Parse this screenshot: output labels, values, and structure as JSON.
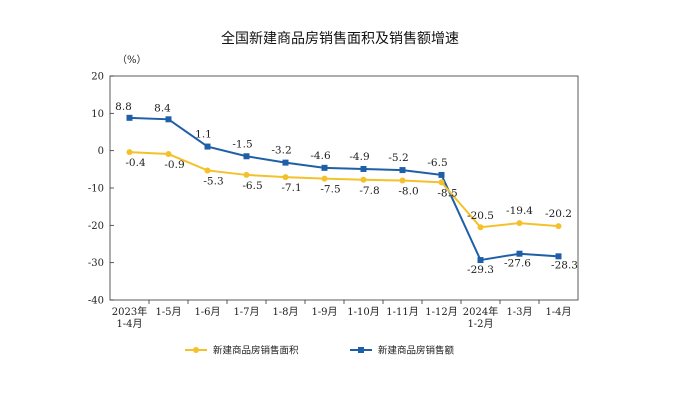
{
  "chart_data": {
    "type": "line",
    "title": "全国新建商品房销售面积及销售额增速",
    "ylabel": "（%）",
    "xlabel": "",
    "ylim": [
      -40,
      20
    ],
    "yticks": [
      20,
      10,
      0,
      -10,
      -20,
      -30,
      -40
    ],
    "grid": false,
    "legend_position": "bottom",
    "categories": [
      [
        "2023年",
        "1-4月"
      ],
      [
        "1-5月"
      ],
      [
        "1-6月"
      ],
      [
        "1-7月"
      ],
      [
        "1-8月"
      ],
      [
        "1-9月"
      ],
      [
        "1-10月"
      ],
      [
        "1-11月"
      ],
      [
        "1-12月"
      ],
      [
        "2024年",
        "1-2月"
      ],
      [
        "1-3月"
      ],
      [
        "1-4月"
      ]
    ],
    "series": [
      {
        "name": "新建商品房销售面积",
        "color": "#F5C12B",
        "marker": "circle",
        "values": [
          -0.4,
          -0.9,
          -5.3,
          -6.5,
          -7.1,
          -7.5,
          -7.8,
          -8.0,
          -8.5,
          -20.5,
          -19.4,
          -20.2
        ],
        "labels": [
          "-0.4",
          "-0.9",
          "-5.3",
          "-6.5",
          "-7.1",
          "-7.5",
          "-7.8",
          "-8.0",
          "-8.5",
          "-20.5",
          "-19.4",
          "-20.2"
        ]
      },
      {
        "name": "新建商品房销售额",
        "color": "#1F5FA8",
        "marker": "square",
        "values": [
          8.8,
          8.4,
          1.1,
          -1.5,
          -3.2,
          -4.6,
          -4.9,
          -5.2,
          -6.5,
          -29.3,
          -27.6,
          -28.3
        ],
        "labels": [
          "8.8",
          "8.4",
          "1.1",
          "-1.5",
          "-3.2",
          "-4.6",
          "-4.9",
          "-5.2",
          "-6.5",
          "-29.3",
          "-27.6",
          "-28.3"
        ]
      }
    ]
  }
}
